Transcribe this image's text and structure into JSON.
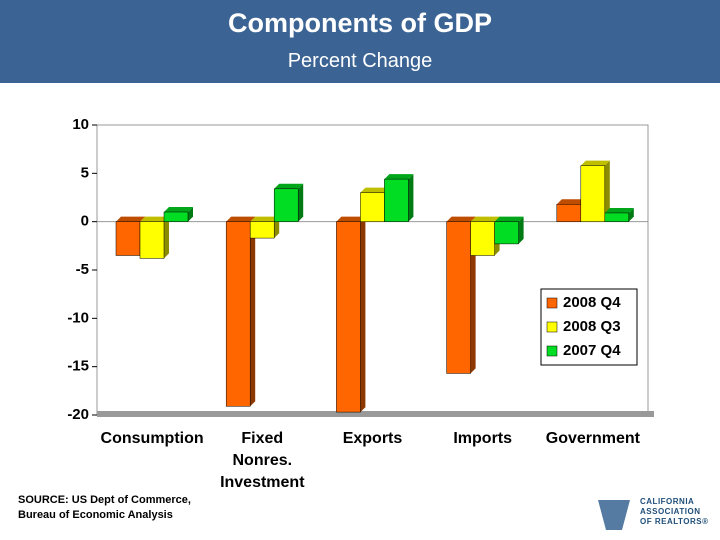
{
  "chart_data": {
    "type": "bar",
    "title": "Components of GDP",
    "subtitle": "Percent Change",
    "categories": [
      "Consumption",
      "Fixed\nNonres.\nInvestment",
      "Exports",
      "Imports",
      "Government"
    ],
    "series": [
      {
        "name": "2008 Q4",
        "color": "#ff6600",
        "values": [
          -3.5,
          -19.1,
          -19.7,
          -15.7,
          1.8
        ]
      },
      {
        "name": "2008 Q3",
        "color": "#ffff00",
        "values": [
          -3.8,
          -1.7,
          3.0,
          -3.5,
          5.8
        ]
      },
      {
        "name": "2007 Q4",
        "color": "#00dd22",
        "values": [
          1.0,
          3.4,
          4.4,
          -2.3,
          0.9
        ]
      }
    ],
    "ylim": [
      -20,
      10
    ],
    "yticks": [
      -20,
      -15,
      -10,
      -5,
      0,
      5,
      10
    ],
    "grid": false,
    "legend": "lower right",
    "source": "SOURCE:  US Dept of Commerce,\nBureau of Economic Analysis"
  },
  "logo": {
    "lines": [
      "CALIFORNIA",
      "ASSOCIATION",
      "OF REALTORS®"
    ]
  }
}
